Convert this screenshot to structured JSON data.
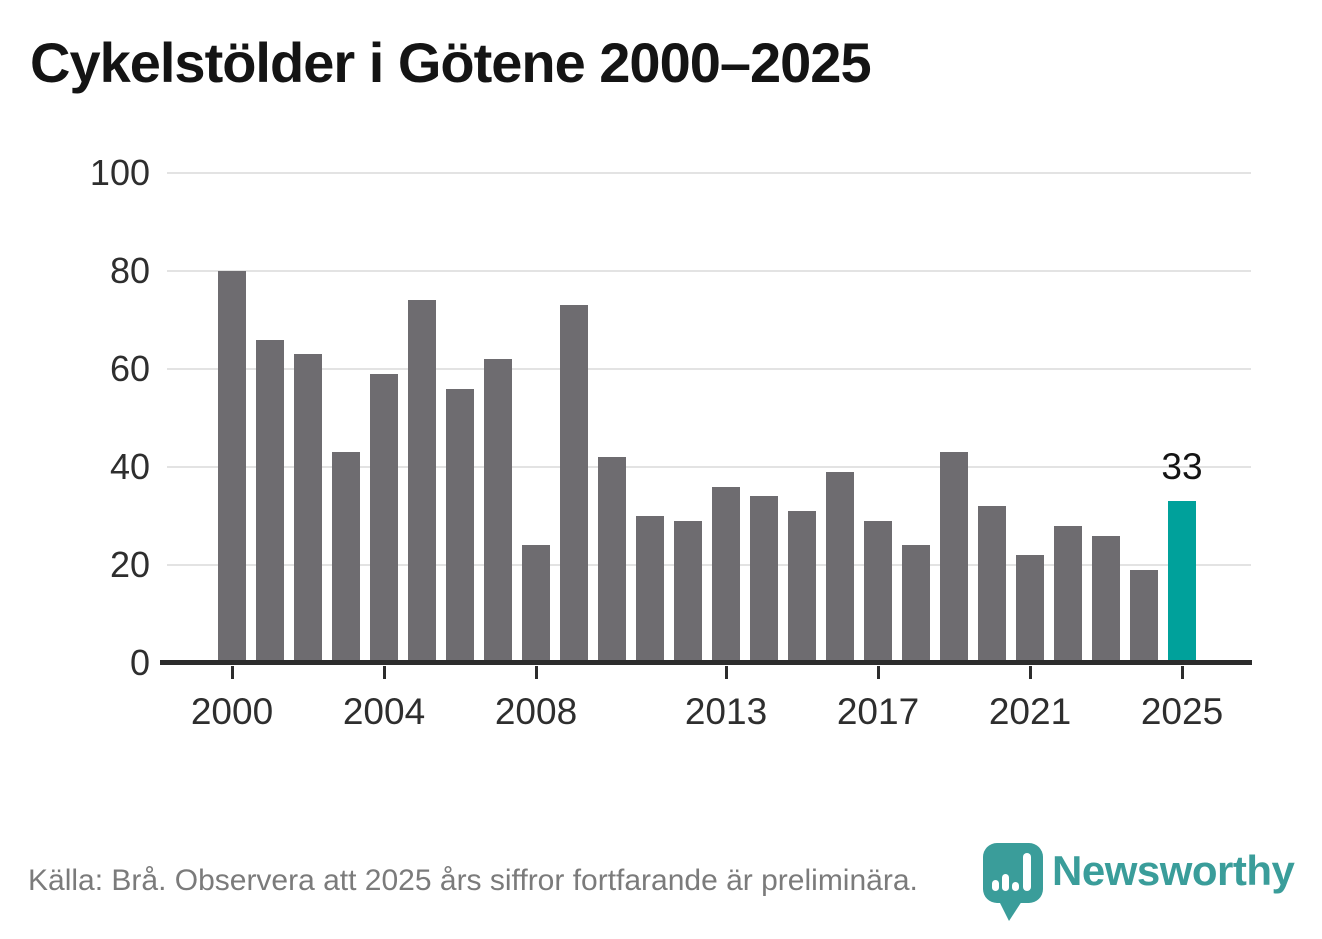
{
  "title": "Cykelstölder i Götene 2000–2025",
  "chart_data": {
    "type": "bar",
    "title": "Cykelstölder i Götene 2000–2025",
    "categories": [
      2000,
      2001,
      2002,
      2003,
      2004,
      2005,
      2006,
      2007,
      2008,
      2009,
      2010,
      2011,
      2012,
      2013,
      2014,
      2015,
      2016,
      2017,
      2018,
      2019,
      2020,
      2021,
      2022,
      2023,
      2024,
      2025
    ],
    "values": [
      80,
      66,
      63,
      43,
      59,
      74,
      56,
      62,
      24,
      73,
      42,
      30,
      29,
      36,
      34,
      31,
      39,
      29,
      24,
      43,
      32,
      22,
      28,
      26,
      19,
      33
    ],
    "ylim": [
      0,
      100
    ],
    "y_ticks": [
      0,
      20,
      40,
      60,
      80,
      100
    ],
    "x_tick_labels": [
      "2000",
      "2004",
      "2008",
      "2013",
      "2017",
      "2021",
      "2025"
    ],
    "grid": "horizontal",
    "legend_position": "none",
    "bar_color": "#6e6c70",
    "highlight_color": "#00a19b",
    "highlight_category": 2025,
    "annotation": {
      "text": "33",
      "category": 2025
    }
  },
  "footer": {
    "source_note": "Källa: Brå. Observera att 2025 års siffror fortfarande är preliminära."
  },
  "brand": {
    "name": "Newsworthy",
    "color": "#3a9d9a",
    "logo_icon": "newsworthy-pin-chart-logo"
  }
}
